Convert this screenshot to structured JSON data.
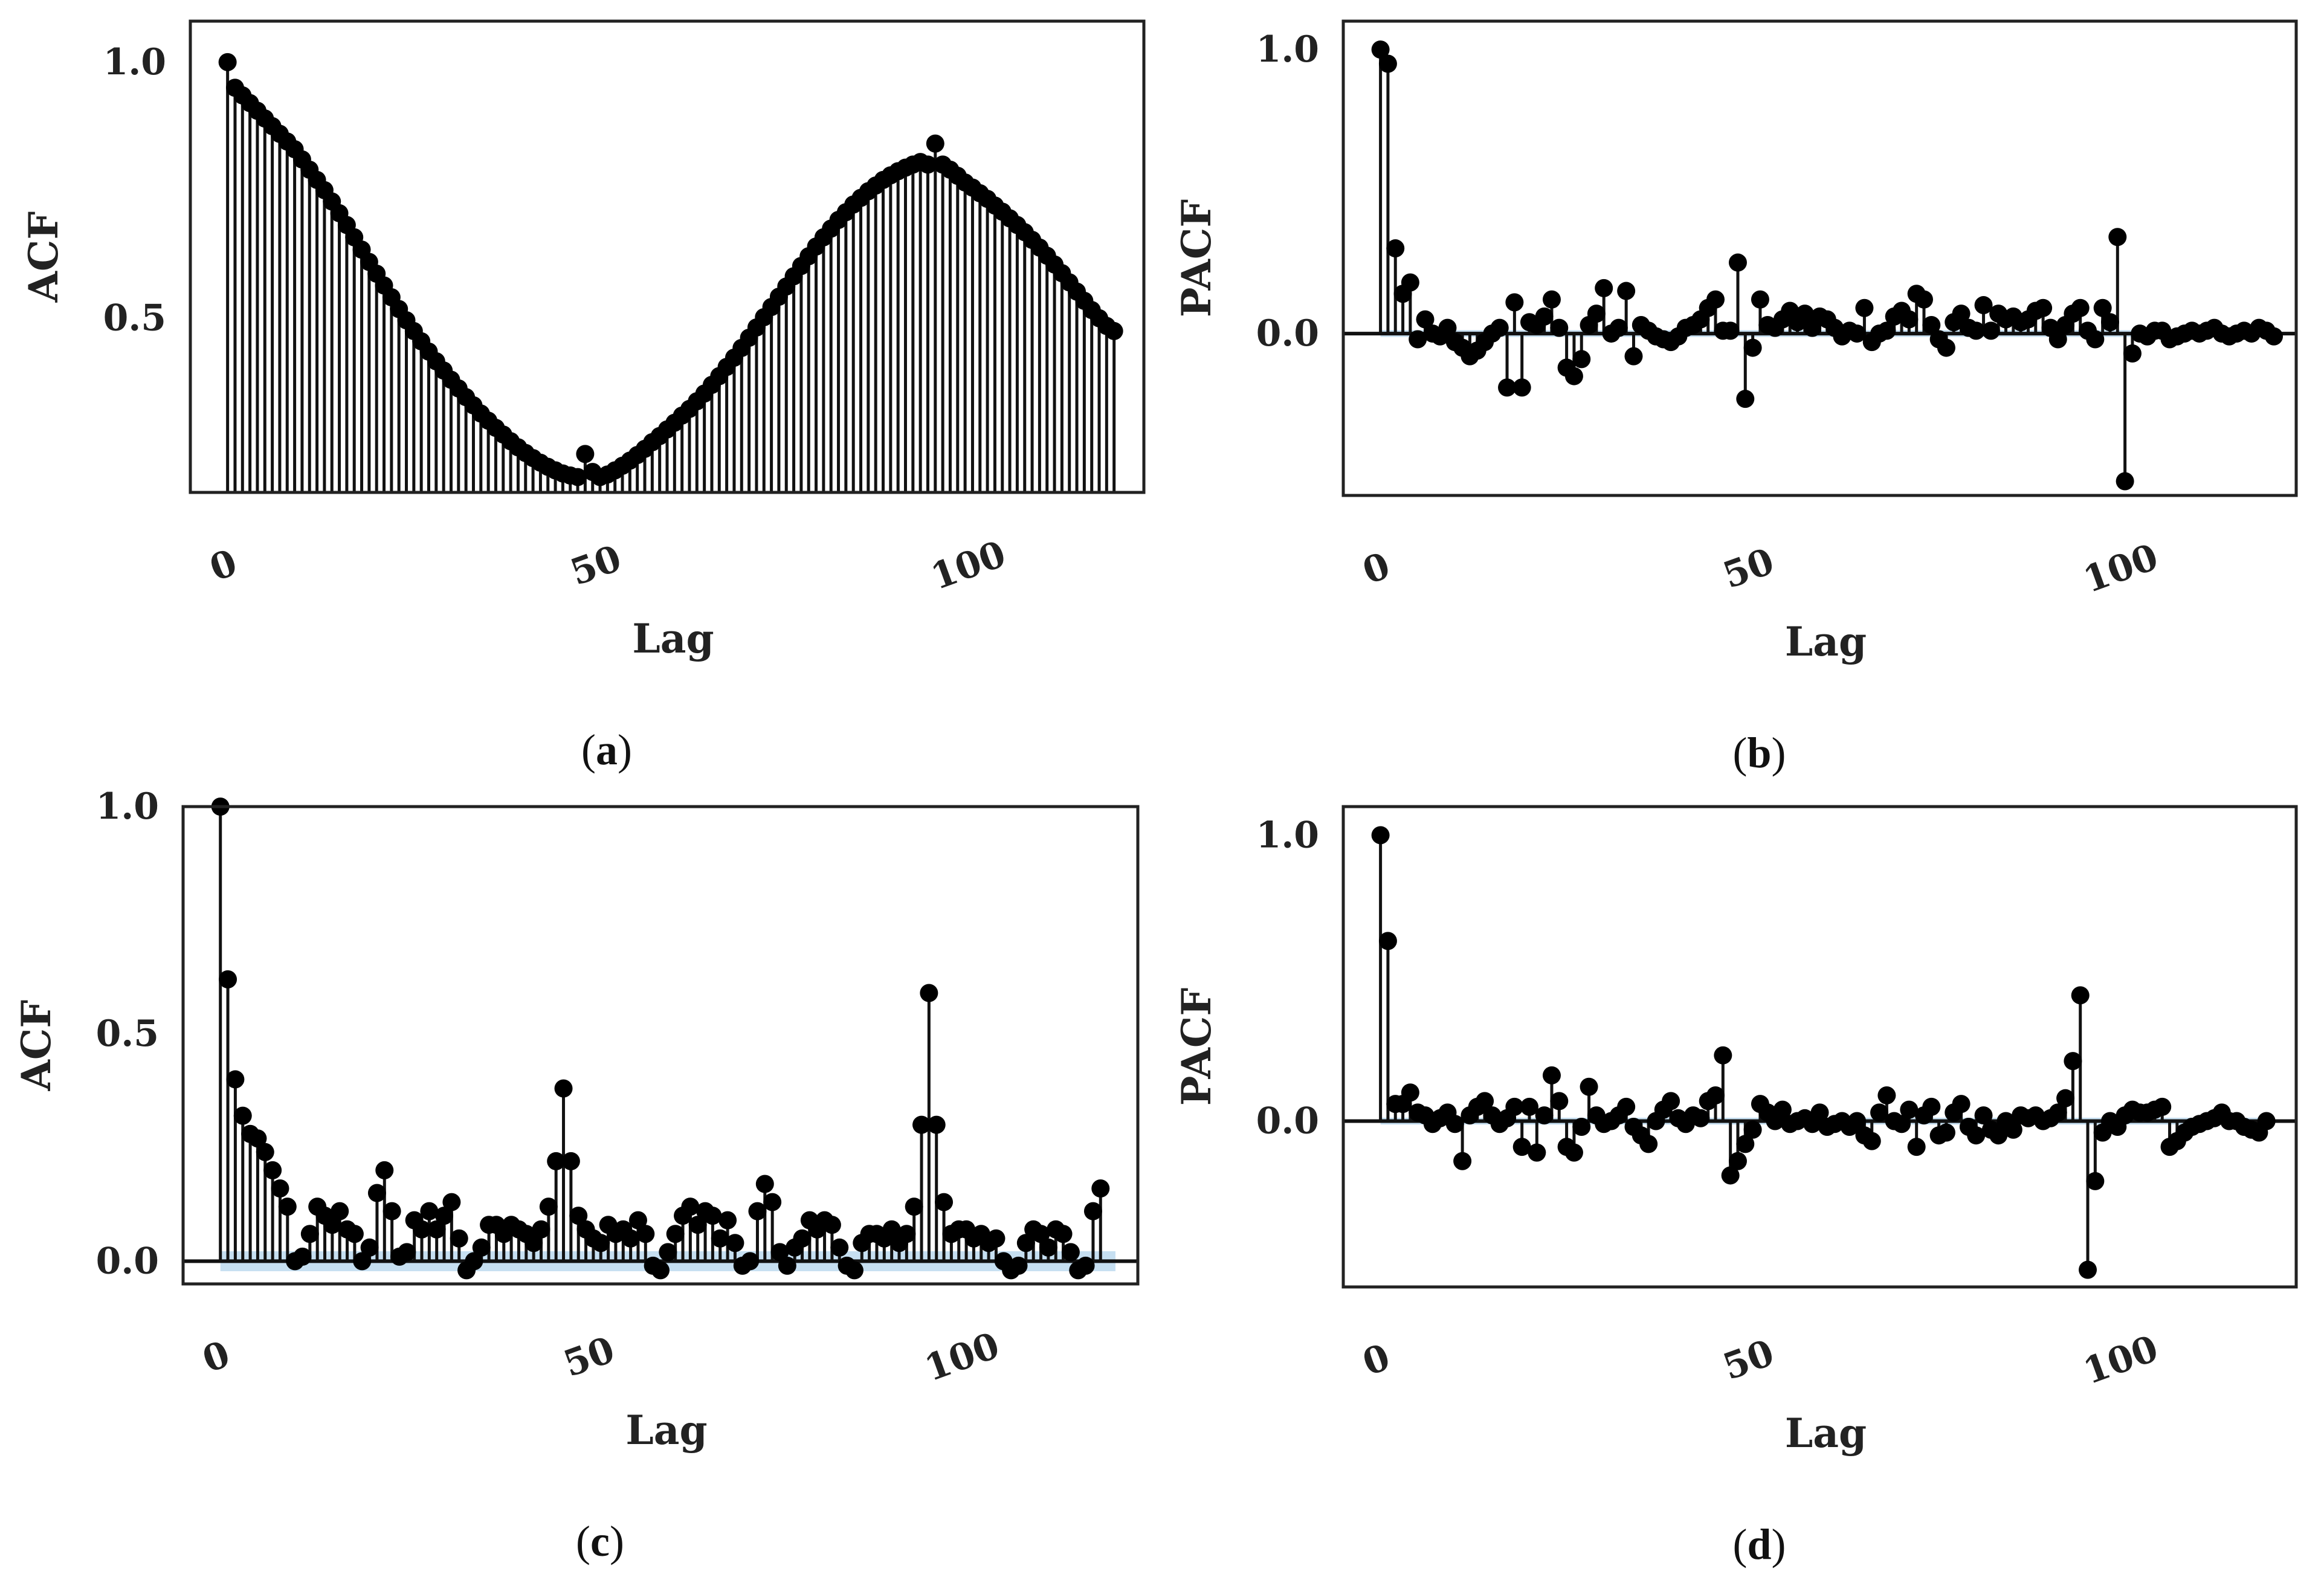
{
  "figure": {
    "panels": [
      "a",
      "b",
      "c",
      "d"
    ]
  },
  "colors": {
    "stem": "#111111",
    "marker": "#000000",
    "confidence_band": "#bcd9ef",
    "frame": "#222222"
  },
  "chart_data": [
    {
      "id": "a",
      "type": "stem",
      "caption": "a",
      "xlabel": "Lag",
      "ylabel": "ACF",
      "xlim": [
        -5,
        123
      ],
      "ylim": [
        0.16,
        1.08
      ],
      "xticks": [
        0,
        50,
        100
      ],
      "yticks": [
        0.5,
        1.0
      ],
      "ytick_labels": [
        "0.5",
        "1.0"
      ],
      "zero_line": false,
      "band_width": 0.0,
      "lags": 120,
      "values": [
        1.0,
        0.95,
        0.935,
        0.92,
        0.905,
        0.89,
        0.875,
        0.86,
        0.845,
        0.83,
        0.81,
        0.79,
        0.77,
        0.75,
        0.728,
        0.705,
        0.682,
        0.658,
        0.634,
        0.61,
        0.587,
        0.564,
        0.541,
        0.518,
        0.496,
        0.475,
        0.455,
        0.435,
        0.416,
        0.398,
        0.38,
        0.363,
        0.346,
        0.33,
        0.314,
        0.3,
        0.286,
        0.273,
        0.26,
        0.248,
        0.237,
        0.227,
        0.218,
        0.21,
        0.203,
        0.197,
        0.193,
        0.19,
        0.235,
        0.2,
        0.19,
        0.195,
        0.203,
        0.212,
        0.222,
        0.233,
        0.245,
        0.258,
        0.27,
        0.283,
        0.296,
        0.31,
        0.323,
        0.338,
        0.353,
        0.37,
        0.387,
        0.405,
        0.423,
        0.442,
        0.462,
        0.482,
        0.502,
        0.522,
        0.542,
        0.562,
        0.582,
        0.602,
        0.621,
        0.64,
        0.658,
        0.675,
        0.692,
        0.707,
        0.722,
        0.735,
        0.748,
        0.759,
        0.77,
        0.779,
        0.787,
        0.794,
        0.8,
        0.805,
        0.8,
        0.841,
        0.8,
        0.79,
        0.778,
        0.765,
        0.755,
        0.744,
        0.733,
        0.72,
        0.708,
        0.695,
        0.682,
        0.668,
        0.653,
        0.638,
        0.622,
        0.605,
        0.588,
        0.57,
        0.552,
        0.534,
        0.516,
        0.5,
        0.485,
        0.475
      ]
    },
    {
      "id": "b",
      "type": "stem",
      "caption": "b",
      "xlabel": "Lag",
      "ylabel": "PACF",
      "xlim": [
        -5,
        123
      ],
      "ylim": [
        -0.57,
        1.1
      ],
      "xticks": [
        0,
        50,
        100
      ],
      "yticks": [
        0.0,
        1.0
      ],
      "ytick_labels": [
        "0.0",
        "1.0"
      ],
      "zero_line": true,
      "band_width": 0.012,
      "lags": 120,
      "values": [
        1.0,
        0.95,
        0.3,
        0.14,
        0.18,
        -0.02,
        0.05,
        0.0,
        -0.01,
        0.02,
        -0.03,
        -0.05,
        -0.08,
        -0.06,
        -0.03,
        0.0,
        0.02,
        -0.19,
        0.11,
        -0.19,
        0.04,
        0.03,
        0.06,
        0.12,
        0.02,
        -0.12,
        -0.15,
        -0.09,
        0.03,
        0.07,
        0.16,
        0.0,
        0.02,
        0.15,
        -0.08,
        0.03,
        0.01,
        -0.01,
        -0.02,
        -0.03,
        -0.01,
        0.02,
        0.03,
        0.05,
        0.09,
        0.12,
        0.01,
        0.01,
        0.25,
        -0.23,
        -0.05,
        0.12,
        0.03,
        0.02,
        0.05,
        0.08,
        0.04,
        0.07,
        0.02,
        0.06,
        0.05,
        0.02,
        -0.01,
        0.01,
        0.0,
        0.09,
        -0.03,
        0.0,
        0.01,
        0.06,
        0.08,
        0.05,
        0.14,
        0.12,
        0.03,
        -0.02,
        -0.05,
        0.04,
        0.07,
        0.02,
        0.01,
        0.1,
        0.01,
        0.07,
        0.05,
        0.06,
        0.04,
        0.05,
        0.08,
        0.09,
        0.02,
        -0.02,
        0.03,
        0.07,
        0.09,
        0.01,
        -0.02,
        0.09,
        0.04,
        0.34,
        -0.52,
        -0.07,
        0.0,
        -0.01,
        0.01,
        0.01,
        -0.02,
        -0.01,
        0.0,
        0.01,
        0.0,
        0.01,
        0.02,
        0.0,
        -0.01,
        0.0,
        0.01,
        0.0,
        0.02,
        0.01,
        -0.01
      ]
    },
    {
      "id": "c",
      "type": "stem",
      "caption": "c",
      "xlabel": "Lag",
      "ylabel": "ACF",
      "xlim": [
        -5,
        123
      ],
      "ylim": [
        -0.05,
        1.0
      ],
      "xticks": [
        0,
        50,
        100
      ],
      "yticks": [
        0.0,
        0.5,
        1.0
      ],
      "ytick_labels": [
        "0.0",
        "0.5",
        "1.0"
      ],
      "zero_line": true,
      "band_width": 0.022,
      "lags": 120,
      "values": [
        1.0,
        0.62,
        0.4,
        0.32,
        0.28,
        0.27,
        0.24,
        0.2,
        0.16,
        0.12,
        0.0,
        0.01,
        0.06,
        0.12,
        0.1,
        0.08,
        0.11,
        0.07,
        0.06,
        0.0,
        0.03,
        0.15,
        0.2,
        0.11,
        0.01,
        0.02,
        0.09,
        0.07,
        0.11,
        0.07,
        0.1,
        0.13,
        0.05,
        -0.02,
        0.0,
        0.03,
        0.08,
        0.08,
        0.06,
        0.08,
        0.07,
        0.06,
        0.04,
        0.07,
        0.12,
        0.22,
        0.38,
        0.22,
        0.1,
        0.07,
        0.05,
        0.04,
        0.08,
        0.06,
        0.07,
        0.05,
        0.09,
        0.06,
        -0.01,
        -0.02,
        0.02,
        0.06,
        0.1,
        0.12,
        0.08,
        0.11,
        0.1,
        0.05,
        0.09,
        0.04,
        -0.01,
        0.0,
        0.11,
        0.17,
        0.13,
        0.02,
        -0.01,
        0.03,
        0.05,
        0.09,
        0.07,
        0.09,
        0.08,
        0.03,
        -0.01,
        -0.02,
        0.04,
        0.06,
        0.06,
        0.05,
        0.07,
        0.04,
        0.06,
        0.12,
        0.3,
        0.59,
        0.3,
        0.13,
        0.06,
        0.07,
        0.07,
        0.05,
        0.06,
        0.04,
        0.05,
        0.0,
        -0.02,
        -0.01,
        0.04,
        0.07,
        0.06,
        0.03,
        0.07,
        0.06,
        0.02,
        -0.02,
        -0.01,
        0.11,
        0.16
      ]
    },
    {
      "id": "d",
      "type": "stem",
      "caption": "d",
      "xlabel": "Lag",
      "ylabel": "PACF",
      "xlim": [
        -5,
        123
      ],
      "ylim": [
        -0.58,
        1.1
      ],
      "xticks": [
        0,
        50,
        100
      ],
      "yticks": [
        0.0,
        1.0
      ],
      "ytick_labels": [
        "0.0",
        "1.0"
      ],
      "zero_line": true,
      "band_width": 0.012,
      "lags": 120,
      "values": [
        1.0,
        0.63,
        0.06,
        0.06,
        0.1,
        0.03,
        0.02,
        -0.01,
        0.01,
        0.03,
        -0.01,
        -0.14,
        0.02,
        0.05,
        0.07,
        0.02,
        -0.01,
        0.01,
        0.05,
        -0.09,
        0.05,
        -0.11,
        0.02,
        0.16,
        0.07,
        -0.09,
        -0.11,
        -0.02,
        0.12,
        0.02,
        -0.01,
        0.0,
        0.02,
        0.05,
        -0.02,
        -0.05,
        -0.08,
        0.0,
        0.04,
        0.07,
        0.01,
        -0.01,
        0.02,
        0.01,
        0.07,
        0.09,
        0.23,
        -0.19,
        -0.14,
        -0.08,
        -0.03,
        0.06,
        0.03,
        0.0,
        0.04,
        -0.01,
        0.0,
        0.01,
        -0.01,
        0.03,
        -0.02,
        -0.01,
        0.0,
        -0.02,
        0.0,
        -0.05,
        -0.07,
        0.03,
        0.09,
        0.0,
        -0.01,
        0.04,
        -0.09,
        0.02,
        0.05,
        -0.05,
        -0.04,
        0.03,
        0.06,
        -0.02,
        -0.05,
        0.02,
        -0.03,
        -0.05,
        0.0,
        -0.03,
        0.02,
        0.01,
        0.02,
        0.0,
        0.01,
        0.03,
        0.08,
        0.21,
        0.44,
        -0.52,
        -0.21,
        -0.04,
        0.0,
        -0.02,
        0.02,
        0.04,
        0.03,
        0.03,
        0.04,
        0.05,
        -0.09,
        -0.07,
        -0.04,
        -0.02,
        -0.01,
        0.0,
        0.01,
        0.03,
        0.0,
        0.0,
        -0.02,
        -0.03,
        -0.04,
        0.0
      ]
    }
  ]
}
